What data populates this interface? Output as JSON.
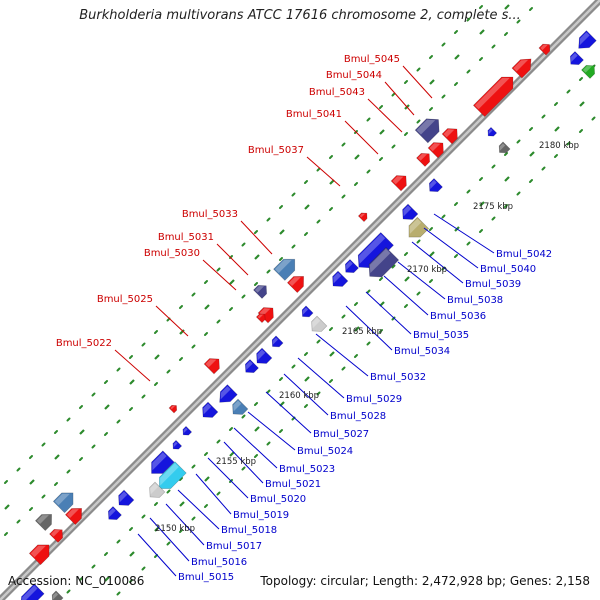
{
  "title": "Burkholderia multivorans ATCC 17616 chromosome 2, complete s...",
  "footer": {
    "accession": "Accession: NC_010086",
    "topology": "Topology: circular; Length: 2,472,928 bp; Genes: 2,158"
  },
  "colors": {
    "forward_label": "#cc0000",
    "reverse_label": "#0000cc",
    "red_gene": "#ee1111",
    "blue_gene": "#1515dd",
    "navy_gene": "#44448a",
    "steelblue_gene": "#4a7fb5",
    "gray_gene": "#666666",
    "cyan_gene": "#33ccee",
    "green_gene": "#22aa22",
    "khaki_gene": "#b8ad6e",
    "lightgray_gene": "#cccccc",
    "backbone": "#999999"
  },
  "scale_labels": [
    {
      "text": "2150 kbp",
      "ref": "tick_2150"
    },
    {
      "text": "2155 kbp",
      "ref": "tick_2155"
    },
    {
      "text": "2160 kbp",
      "ref": "tick_2160"
    },
    {
      "text": "2165 kbp",
      "ref": "tick_2165"
    },
    {
      "text": "2170 kbp",
      "ref": "tick_2170"
    },
    {
      "text": "2175 kbp",
      "ref": "tick_2175"
    },
    {
      "text": "2180 kbp",
      "ref": "tick_2180"
    }
  ],
  "forward_genes": [
    {
      "name": "Bmul_5045"
    },
    {
      "name": "Bmul_5044"
    },
    {
      "name": "Bmul_5043"
    },
    {
      "name": "Bmul_5041"
    },
    {
      "name": "Bmul_5037"
    },
    {
      "name": "Bmul_5033"
    },
    {
      "name": "Bmul_5031"
    },
    {
      "name": "Bmul_5030"
    },
    {
      "name": "Bmul_5025"
    },
    {
      "name": "Bmul_5022"
    }
  ],
  "reverse_genes": [
    {
      "name": "Bmul_5042"
    },
    {
      "name": "Bmul_5040"
    },
    {
      "name": "Bmul_5039"
    },
    {
      "name": "Bmul_5038"
    },
    {
      "name": "Bmul_5036"
    },
    {
      "name": "Bmul_5035"
    },
    {
      "name": "Bmul_5034"
    },
    {
      "name": "Bmul_5032"
    },
    {
      "name": "Bmul_5029"
    },
    {
      "name": "Bmul_5028"
    },
    {
      "name": "Bmul_5027"
    },
    {
      "name": "Bmul_5024"
    },
    {
      "name": "Bmul_5023"
    },
    {
      "name": "Bmul_5021"
    },
    {
      "name": "Bmul_5020"
    },
    {
      "name": "Bmul_5019"
    },
    {
      "name": "Bmul_5018"
    },
    {
      "name": "Bmul_5017"
    },
    {
      "name": "Bmul_5016"
    },
    {
      "name": "Bmul_5015"
    }
  ]
}
